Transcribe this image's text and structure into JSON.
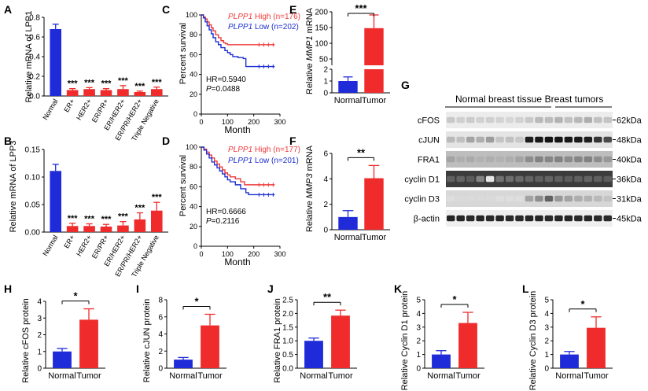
{
  "colors": {
    "blue": "#1f2bd8",
    "red": "#ef2b2b",
    "axis": "#000000",
    "pos": "#333333",
    "curve_high": "#ee3a3a",
    "curve_low": "#1d2fd0"
  },
  "panel_letters": {
    "A": "A",
    "B": "B",
    "C": "C",
    "D": "D",
    "E": "E",
    "F": "F",
    "G": "G",
    "H": "H",
    "I": "I",
    "J": "J",
    "K": "K",
    "L": "L"
  },
  "chart_data": [
    {
      "id": "A",
      "type": "bar",
      "ylabel": "Relative mRNA of LPP1",
      "ylim": [
        0,
        0.8
      ],
      "yticks": [
        "0.0",
        "0.2",
        "0.4",
        "0.6",
        "0.8"
      ],
      "ytick_values": [
        0,
        0.2,
        0.4,
        0.6,
        0.8
      ],
      "categories": [
        "Normal",
        "ER+",
        "HER2+",
        "ER/PR+",
        "ER/HER2+",
        "ER/PR/HER2+",
        "Triple Negative"
      ],
      "values": [
        0.68,
        0.06,
        0.07,
        0.06,
        0.07,
        0.04,
        0.07
      ],
      "errors": [
        0.05,
        0.015,
        0.015,
        0.015,
        0.035,
        0.01,
        0.02
      ],
      "colors": [
        "blue",
        "red",
        "red",
        "red",
        "red",
        "red",
        "red"
      ],
      "significance": [
        "",
        "***",
        "***",
        "***",
        "***",
        "***",
        "***"
      ]
    },
    {
      "id": "B",
      "type": "bar",
      "ylabel": "Relative mRNA of LPP3",
      "ylim": [
        0,
        0.15
      ],
      "yticks": [
        "0.00",
        "0.05",
        "0.10",
        "0.15"
      ],
      "ytick_values": [
        0,
        0.05,
        0.1,
        0.15
      ],
      "categories": [
        "Normal",
        "ER+",
        "HER2+",
        "ER/PR+",
        "ER/HER2+",
        "ER/PR/HER2+",
        "Triple Negative"
      ],
      "values": [
        0.111,
        0.011,
        0.011,
        0.01,
        0.012,
        0.023,
        0.039
      ],
      "errors": [
        0.012,
        0.005,
        0.004,
        0.004,
        0.007,
        0.012,
        0.015
      ],
      "colors": [
        "blue",
        "red",
        "red",
        "red",
        "red",
        "red",
        "red"
      ],
      "significance": [
        "",
        "***",
        "***",
        "***",
        "***",
        "***",
        "***"
      ]
    },
    {
      "id": "C",
      "type": "line",
      "ylabel": "Percent survival",
      "xlabel": "Month",
      "xlim": [
        0,
        300
      ],
      "ylim": [
        0,
        100
      ],
      "xticks": [
        "0",
        "100",
        "200",
        "300"
      ],
      "xtick_values": [
        0,
        100,
        200,
        300
      ],
      "yticks": [
        "0",
        "20",
        "40",
        "60",
        "80",
        "100"
      ],
      "ytick_values": [
        0,
        20,
        40,
        60,
        80,
        100
      ],
      "legend_high_gene": "PLPP1",
      "legend_high_rest": " High (n=176)",
      "legend_low_gene": "PLPP1",
      "legend_low_rest": " Low (n=202)",
      "hr_text": "HR=0.5940",
      "p_label": "P",
      "p_value_text": "=0.0488",
      "series": [
        {
          "name": "High",
          "color": "curve_high",
          "x": [
            0,
            8,
            15,
            22,
            30,
            38,
            45,
            55,
            65,
            75,
            85,
            92,
            100,
            280
          ],
          "y": [
            100,
            98,
            96,
            93,
            90,
            87,
            84,
            80,
            77,
            74,
            72,
            71,
            70,
            70
          ]
        },
        {
          "name": "Low",
          "color": "curve_low",
          "x": [
            0,
            8,
            15,
            22,
            30,
            38,
            45,
            55,
            65,
            75,
            90,
            100,
            110,
            120,
            140,
            160,
            170,
            180,
            280
          ],
          "y": [
            100,
            97,
            93,
            89,
            85,
            81,
            77,
            73,
            70,
            67,
            64,
            62,
            60,
            58,
            57,
            56,
            48,
            48,
            48
          ]
        }
      ]
    },
    {
      "id": "D",
      "type": "line",
      "ylabel": "Percent survival",
      "xlabel": "Month",
      "xlim": [
        0,
        300
      ],
      "ylim": [
        0,
        100
      ],
      "xticks": [
        "0",
        "100",
        "200",
        "300"
      ],
      "xtick_values": [
        0,
        100,
        200,
        300
      ],
      "yticks": [
        "0",
        "20",
        "40",
        "60",
        "80",
        "100"
      ],
      "ytick_values": [
        0,
        20,
        40,
        60,
        80,
        100
      ],
      "legend_high_gene": "PLPP1",
      "legend_high_rest": " High (n=177)",
      "legend_low_gene": "PLPP1",
      "legend_low_rest": " Low (n=201)",
      "hr_text": "HR=0.6666",
      "p_label": "P",
      "p_value_text": "=0.2116",
      "series": [
        {
          "name": "High",
          "color": "curve_high",
          "x": [
            0,
            10,
            20,
            30,
            40,
            50,
            60,
            70,
            80,
            90,
            100,
            110,
            130,
            150,
            165,
            280
          ],
          "y": [
            100,
            98,
            95,
            92,
            89,
            86,
            83,
            80,
            77,
            74,
            72,
            70,
            68,
            65,
            62,
            62
          ]
        },
        {
          "name": "Low",
          "color": "curve_low",
          "x": [
            0,
            10,
            20,
            30,
            40,
            50,
            60,
            70,
            80,
            90,
            100,
            110,
            130,
            150,
            170,
            180,
            280
          ],
          "y": [
            100,
            97,
            93,
            89,
            85,
            82,
            79,
            76,
            73,
            70,
            67,
            65,
            62,
            58,
            54,
            52,
            52
          ]
        }
      ]
    },
    {
      "id": "E",
      "type": "bar",
      "ylabel_pre": "Relative ",
      "ylabel_gene": "MMP1",
      "ylabel_post": " mRNA",
      "broken_axis": true,
      "upper_ytick_values": [
        50,
        100,
        150,
        200
      ],
      "upper_yticks": [
        "50",
        "100",
        "150",
        "200"
      ],
      "lower_ytick_values": [
        0,
        1,
        2
      ],
      "lower_yticks": [
        "0",
        "1",
        "2"
      ],
      "categories": [
        "Normal",
        "Tumor"
      ],
      "values": [
        1,
        148
      ],
      "errors": [
        0.35,
        42
      ],
      "colors": [
        "blue",
        "red"
      ],
      "significance": "***"
    },
    {
      "id": "F",
      "type": "bar",
      "ylabel_pre": "Relative ",
      "ylabel_gene": "MMP3",
      "ylabel_post": " mRNA",
      "ylim": [
        0,
        6
      ],
      "yticks": [
        "0",
        "2",
        "4",
        "6"
      ],
      "ytick_values": [
        0,
        2,
        4,
        6
      ],
      "categories": [
        "Normal",
        "Tumor"
      ],
      "values": [
        1.0,
        4.05
      ],
      "errors": [
        0.5,
        1.0
      ],
      "colors": [
        "blue",
        "red"
      ],
      "significance": "**"
    },
    {
      "id": "H",
      "type": "bar",
      "ylabel": "Relative cFOS protein",
      "ylim": [
        0,
        4
      ],
      "yticks": [
        "0",
        "1",
        "2",
        "3",
        "4"
      ],
      "ytick_values": [
        0,
        1,
        2,
        3,
        4
      ],
      "categories": [
        "Normal",
        "Tumor"
      ],
      "values": [
        1.0,
        2.9
      ],
      "errors": [
        0.18,
        0.65
      ],
      "colors": [
        "blue",
        "red"
      ],
      "significance": "*"
    },
    {
      "id": "I",
      "type": "bar",
      "ylabel": "Relative cJUN protein",
      "ylim": [
        0,
        8
      ],
      "yticks": [
        "0",
        "2",
        "4",
        "6",
        "8"
      ],
      "ytick_values": [
        0,
        2,
        4,
        6,
        8
      ],
      "categories": [
        "Normal",
        "Tumor"
      ],
      "values": [
        1.0,
        5.0
      ],
      "errors": [
        0.25,
        1.3
      ],
      "colors": [
        "blue",
        "red"
      ],
      "significance": "*"
    },
    {
      "id": "J",
      "type": "bar",
      "ylabel": "Relative FRA1 protein",
      "ylim": [
        0,
        2.5
      ],
      "yticks": [
        "0.0",
        "0.5",
        "1.0",
        "1.5",
        "2.0",
        "2.5"
      ],
      "ytick_values": [
        0,
        0.5,
        1.0,
        1.5,
        2.0,
        2.5
      ],
      "categories": [
        "Normal",
        "Tumor"
      ],
      "values": [
        1.0,
        1.92
      ],
      "errors": [
        0.1,
        0.2
      ],
      "colors": [
        "blue",
        "red"
      ],
      "significance": "**"
    },
    {
      "id": "K",
      "type": "bar",
      "ylabel": "Relative Cyclin D1 protein",
      "ylim": [
        0,
        5
      ],
      "yticks": [
        "0",
        "1",
        "2",
        "3",
        "4",
        "5"
      ],
      "ytick_values": [
        0,
        1,
        2,
        3,
        4,
        5
      ],
      "categories": [
        "Normal",
        "Tumor"
      ],
      "values": [
        1.0,
        3.3
      ],
      "errors": [
        0.28,
        0.78
      ],
      "colors": [
        "blue",
        "red"
      ],
      "significance": "*"
    },
    {
      "id": "L",
      "type": "bar",
      "ylabel": "Relative Cyclin D3 protein",
      "ylim": [
        0,
        5
      ],
      "yticks": [
        "0",
        "1",
        "2",
        "3",
        "4",
        "5"
      ],
      "ytick_values": [
        0,
        1,
        2,
        3,
        4,
        5
      ],
      "categories": [
        "Normal",
        "Tumor"
      ],
      "values": [
        1.0,
        2.95
      ],
      "errors": [
        0.22,
        0.8
      ],
      "colors": [
        "blue",
        "red"
      ],
      "significance": "*"
    }
  ],
  "blot": {
    "group_normal": "Normal breast tissue",
    "group_tumor": "Breast tumors",
    "rows": [
      {
        "label": "cFOS",
        "mw": "62kDa",
        "bg": "#ececec",
        "intensity": [
          0.18,
          0.15,
          0.17,
          0.14,
          0.15,
          0.13,
          0.12,
          0.14,
          0.18,
          0.25,
          0.24,
          0.28,
          0.22,
          0.26,
          0.3,
          0.22,
          0.2
        ]
      },
      {
        "label": "cJUN",
        "mw": "48kDa",
        "bg": "#e4e4e4",
        "intensity": [
          0.25,
          0.22,
          0.35,
          0.3,
          0.38,
          0.2,
          0.22,
          0.18,
          0.95,
          0.98,
          1.0,
          0.99,
          0.98,
          0.97,
          0.95,
          0.85,
          0.75
        ]
      },
      {
        "label": "FRA1",
        "mw": "40kDa",
        "bg": "#bdbdbd",
        "intensity": [
          0.35,
          0.3,
          0.32,
          0.28,
          0.3,
          0.28,
          0.3,
          0.35,
          0.45,
          0.5,
          0.48,
          0.5,
          0.46,
          0.48,
          0.5,
          0.45,
          0.4
        ]
      },
      {
        "label": "cyclin D1",
        "mw": "36kDa",
        "bg": "#3c3c3c",
        "intensity": [
          0.2,
          0.22,
          0.18,
          0.4,
          0.95,
          0.3,
          0.28,
          0.25,
          0.22,
          0.2,
          0.22,
          0.2,
          0.18,
          0.2,
          0.22,
          0.2,
          0.18
        ]
      },
      {
        "label": "cyclin D3",
        "mw": "31kDa",
        "bg": "#d7d7d7",
        "intensity": [
          0.08,
          0.1,
          0.1,
          0.1,
          0.1,
          0.08,
          0.08,
          0.08,
          0.35,
          0.45,
          0.65,
          0.4,
          0.35,
          0.3,
          0.28,
          0.25,
          0.2
        ]
      },
      {
        "label": "β-actin",
        "mw": "45kDa",
        "bg": "#efefef",
        "intensity": [
          0.92,
          0.92,
          0.9,
          0.92,
          0.9,
          0.92,
          0.9,
          0.9,
          0.92,
          0.92,
          0.9,
          0.92,
          0.92,
          0.9,
          0.92,
          0.9,
          0.9
        ]
      }
    ]
  }
}
